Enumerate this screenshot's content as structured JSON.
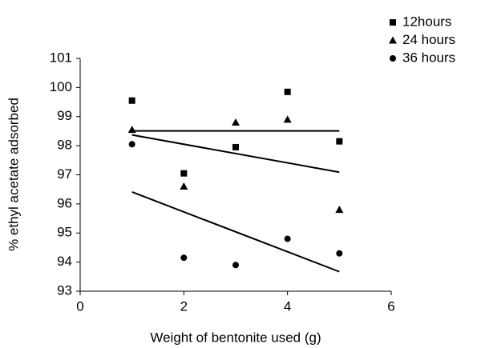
{
  "chart_data": {
    "type": "scatter",
    "x_label": "Weight of bentonite used (g)",
    "y_label": "% ethyl acetate  adsorbed",
    "x": [
      1,
      2,
      3,
      4,
      5
    ],
    "series": [
      {
        "name": "12hours",
        "color": "#000000",
        "marker": "square",
        "values": [
          99.55,
          97.05,
          97.95,
          99.85,
          98.15
        ]
      },
      {
        "name": "24 hours",
        "color": "#000000",
        "marker": "triangle",
        "values": [
          98.55,
          96.6,
          98.8,
          98.9,
          95.8
        ]
      },
      {
        "name": "36 hours",
        "color": "#000000",
        "marker": "circle",
        "values": [
          98.05,
          94.15,
          93.9,
          94.8,
          94.3
        ]
      }
    ],
    "trendline": "linear",
    "xlim": [
      0,
      6
    ],
    "xticks": [
      0,
      2,
      4,
      6
    ],
    "ylim": [
      93,
      101
    ],
    "yticks": [
      93,
      94,
      95,
      96,
      97,
      98,
      99,
      100,
      101
    ],
    "grid": false,
    "legend": "top-right"
  }
}
